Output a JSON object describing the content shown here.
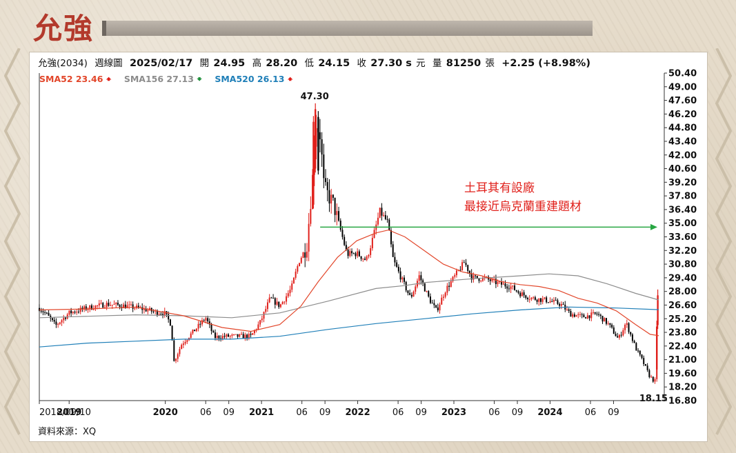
{
  "stock_title": "允強",
  "info": {
    "name": "允強(2034)",
    "period": "週線圖",
    "date": "2025/02/17",
    "open_label": "開",
    "open": "24.95",
    "high_label": "高",
    "high": "28.20",
    "low_label": "低",
    "low": "24.15",
    "close_label": "收",
    "close": "27.30 s",
    "unit": "元",
    "vol_label": "量",
    "volume": "81250",
    "vol_unit": "張",
    "change": "+2.25 (+8.98%)"
  },
  "sma": [
    {
      "label": "SMA52 23.46",
      "arrow": "up",
      "color": "#e2462a"
    },
    {
      "label": "SMA156 27.13",
      "arrow": "down",
      "color": "#8c8c8c"
    },
    {
      "label": "SMA520 26.13",
      "arrow": "up",
      "color": "#1f7fb8"
    }
  ],
  "colors": {
    "up": "#e0201b",
    "down": "#000000",
    "annotation": "#e0201b",
    "arrow_line": "#27a642",
    "sma52": "#e2462a",
    "sma156": "#8c8c8c",
    "sma520": "#1f7fb8"
  },
  "annotation": {
    "line1": "土耳其有設廠",
    "line2": "最接近烏克蘭重建題材"
  },
  "source": "資料來源：XQ",
  "chart_data": {
    "type": "candlestick",
    "title": "",
    "xlabel": "",
    "ylabel": "",
    "ylim": [
      16.8,
      50.4
    ],
    "y_ticks": [
      "50.40",
      "49.00",
      "47.60",
      "46.20",
      "44.80",
      "43.40",
      "42.00",
      "40.60",
      "39.20",
      "37.80",
      "36.40",
      "35.00",
      "33.60",
      "32.20",
      "30.80",
      "29.40",
      "28.00",
      "26.60",
      "25.20",
      "23.80",
      "22.40",
      "21.00",
      "19.60",
      "18.20",
      "16.80"
    ],
    "x_ticks": [
      {
        "label": "2018/09/10",
        "t": 0
      },
      {
        "label": "2019",
        "t": 0.31
      },
      {
        "label": "2020",
        "t": 1.31
      },
      {
        "label": "06",
        "t": 1.73
      },
      {
        "label": "09",
        "t": 1.97
      },
      {
        "label": "2021",
        "t": 2.31
      },
      {
        "label": "06",
        "t": 2.73
      },
      {
        "label": "09",
        "t": 2.97
      },
      {
        "label": "2022",
        "t": 3.31
      },
      {
        "label": "06",
        "t": 3.73
      },
      {
        "label": "09",
        "t": 3.97
      },
      {
        "label": "2023",
        "t": 4.31
      },
      {
        "label": "06",
        "t": 4.73
      },
      {
        "label": "09",
        "t": 4.97
      },
      {
        "label": "2024",
        "t": 5.31
      },
      {
        "label": "06",
        "t": 5.73
      },
      {
        "label": "09",
        "t": 5.97
      }
    ],
    "x_end": 6.44,
    "price_anchors": [
      [
        0,
        26.3
      ],
      [
        0.08,
        25.6
      ],
      [
        0.17,
        24.5
      ],
      [
        0.31,
        25.8
      ],
      [
        0.5,
        26.3
      ],
      [
        0.7,
        26.7
      ],
      [
        0.9,
        26.5
      ],
      [
        1.08,
        26.2
      ],
      [
        1.2,
        25.9
      ],
      [
        1.3,
        25.8
      ],
      [
        1.37,
        24.6
      ],
      [
        1.4,
        20.8
      ],
      [
        1.48,
        22.6
      ],
      [
        1.65,
        24.4
      ],
      [
        1.73,
        25.3
      ],
      [
        1.82,
        23.3
      ],
      [
        1.95,
        23.4
      ],
      [
        2.2,
        23.4
      ],
      [
        2.3,
        24.9
      ],
      [
        2.4,
        27.3
      ],
      [
        2.5,
        26.5
      ],
      [
        2.62,
        28.3
      ],
      [
        2.7,
        31.1
      ],
      [
        2.78,
        32.6
      ],
      [
        2.84,
        39.6
      ],
      [
        2.87,
        45.6
      ],
      [
        2.92,
        44.1
      ],
      [
        2.96,
        38.6
      ],
      [
        3.06,
        36.9
      ],
      [
        3.2,
        31.8
      ],
      [
        3.3,
        31.9
      ],
      [
        3.4,
        31.2
      ],
      [
        3.46,
        33.2
      ],
      [
        3.54,
        36.2
      ],
      [
        3.62,
        35.1
      ],
      [
        3.68,
        31.2
      ],
      [
        3.77,
        29.2
      ],
      [
        3.86,
        27.3
      ],
      [
        3.95,
        29.6
      ],
      [
        4.05,
        27.3
      ],
      [
        4.13,
        26.0
      ],
      [
        4.22,
        28.1
      ],
      [
        4.33,
        29.7
      ],
      [
        4.42,
        31.0
      ],
      [
        4.5,
        29.4
      ],
      [
        4.64,
        29.3
      ],
      [
        4.78,
        28.8
      ],
      [
        4.9,
        28.5
      ],
      [
        5.0,
        27.8
      ],
      [
        5.12,
        27.3
      ],
      [
        5.27,
        27.1
      ],
      [
        5.42,
        26.7
      ],
      [
        5.52,
        25.7
      ],
      [
        5.65,
        25.4
      ],
      [
        5.8,
        25.7
      ],
      [
        5.92,
        24.6
      ],
      [
        6.02,
        23.1
      ],
      [
        6.1,
        24.8
      ],
      [
        6.2,
        22.2
      ],
      [
        6.27,
        20.9
      ],
      [
        6.34,
        19.4
      ],
      [
        6.4,
        18.7
      ],
      [
        6.44,
        27.3
      ]
    ],
    "spikes": [
      {
        "t": 2.87,
        "high": 47.3,
        "low": 40.2,
        "up": true
      },
      {
        "t": 2.85,
        "high": 46.0,
        "low": 36.5,
        "up": true
      },
      {
        "t": 2.9,
        "high": 46.5,
        "low": 40.0,
        "up": false
      },
      {
        "t": 6.43,
        "high": 28.2,
        "low": 24.15,
        "up": true
      },
      {
        "t": 6.42,
        "high": 25.0,
        "low": 19.6,
        "up": true
      }
    ],
    "sma52": [
      [
        0,
        26.1
      ],
      [
        0.5,
        26.2
      ],
      [
        1.0,
        26.4
      ],
      [
        1.5,
        25.5
      ],
      [
        1.9,
        24.3
      ],
      [
        2.2,
        23.9
      ],
      [
        2.5,
        24.6
      ],
      [
        2.72,
        26.5
      ],
      [
        2.9,
        29.0
      ],
      [
        3.1,
        31.5
      ],
      [
        3.3,
        33.2
      ],
      [
        3.5,
        34.0
      ],
      [
        3.63,
        34.3
      ],
      [
        3.8,
        33.6
      ],
      [
        4.0,
        32.2
      ],
      [
        4.2,
        30.8
      ],
      [
        4.4,
        30.0
      ],
      [
        4.6,
        29.6
      ],
      [
        4.8,
        29.0
      ],
      [
        5.0,
        28.7
      ],
      [
        5.2,
        28.5
      ],
      [
        5.4,
        28.1
      ],
      [
        5.6,
        27.3
      ],
      [
        5.8,
        26.8
      ],
      [
        6.0,
        26.0
      ],
      [
        6.2,
        24.6
      ],
      [
        6.35,
        23.6
      ],
      [
        6.44,
        23.46
      ]
    ],
    "sma156": [
      [
        0,
        25.3
      ],
      [
        1.0,
        25.6
      ],
      [
        1.5,
        25.5
      ],
      [
        2.0,
        25.3
      ],
      [
        2.5,
        25.8
      ],
      [
        3.0,
        27.0
      ],
      [
        3.5,
        28.3
      ],
      [
        3.8,
        28.6
      ],
      [
        4.0,
        28.9
      ],
      [
        4.5,
        29.3
      ],
      [
        5.0,
        29.6
      ],
      [
        5.3,
        29.8
      ],
      [
        5.6,
        29.6
      ],
      [
        5.9,
        28.8
      ],
      [
        6.2,
        27.8
      ],
      [
        6.44,
        27.13
      ]
    ],
    "sma520": [
      [
        0,
        22.3
      ],
      [
        0.5,
        22.7
      ],
      [
        1.0,
        22.9
      ],
      [
        1.5,
        23.1
      ],
      [
        2.0,
        23.1
      ],
      [
        2.5,
        23.4
      ],
      [
        3.0,
        24.1
      ],
      [
        3.5,
        24.7
      ],
      [
        4.0,
        25.2
      ],
      [
        4.5,
        25.7
      ],
      [
        5.0,
        26.1
      ],
      [
        5.5,
        26.4
      ],
      [
        6.0,
        26.3
      ],
      [
        6.44,
        26.13
      ]
    ],
    "peak_label": {
      "text": "47.30",
      "t": 2.87,
      "price": 47.3
    },
    "trough_label": {
      "text": "18.15",
      "t": 6.4,
      "price": 18.15
    },
    "arrow": {
      "t_start": 2.92,
      "t_end": 6.44,
      "price": 34.6
    }
  }
}
